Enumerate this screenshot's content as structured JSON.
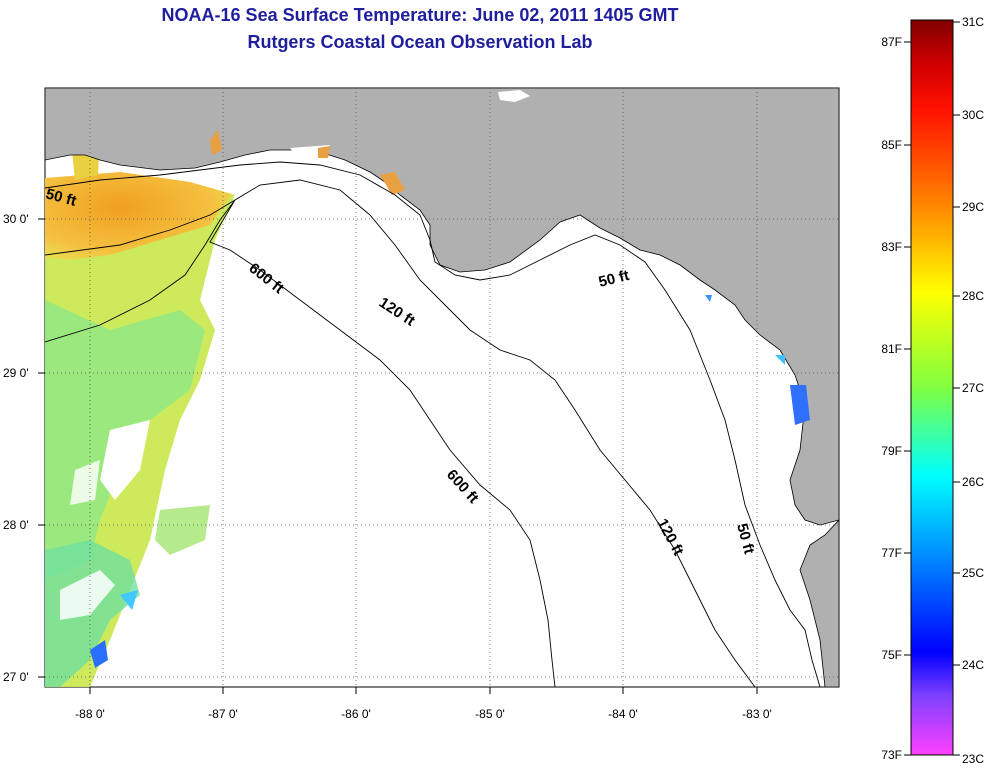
{
  "header": {
    "title": "NOAA-16 Sea Surface Temperature:  June 02, 2011 1405 GMT",
    "subtitle": "Rutgers Coastal Ocean Observation Lab"
  },
  "map": {
    "longitude_labels": [
      "-88 0'",
      "-87 0'",
      "-86 0'",
      "-85 0'",
      "-84 0'",
      "-83 0'"
    ],
    "latitude_labels": [
      "30 0'",
      "29 0'",
      "28 0'",
      "27 0'"
    ],
    "contour_labels": {
      "c50_west": "50 ft",
      "c600_north": "600 ft",
      "c120_north": "120 ft",
      "c50_north": "50 ft",
      "c600_south": "600 ft",
      "c120_south": "120 ft",
      "c50_south": "50 ft"
    },
    "colors": {
      "land": "#b0b0b0",
      "ocean_no_data": "#ffffff",
      "warm_coastal": "#f2a830",
      "mid_water": "#c8e84a",
      "cool_water": "#6ee89a"
    }
  },
  "colorbar": {
    "celsius_labels": [
      "31C",
      "30C",
      "29C",
      "28C",
      "27C",
      "26C",
      "25C",
      "24C",
      "23C"
    ],
    "fahrenheit_labels": [
      "87F",
      "85F",
      "83F",
      "81F",
      "79F",
      "77F",
      "75F",
      "73F"
    ],
    "stops": [
      "#800000",
      "#ff0000",
      "#ff8000",
      "#ffff00",
      "#80ff40",
      "#00ffff",
      "#0080ff",
      "#0000ff",
      "#8040ff",
      "#ff40ff"
    ]
  }
}
